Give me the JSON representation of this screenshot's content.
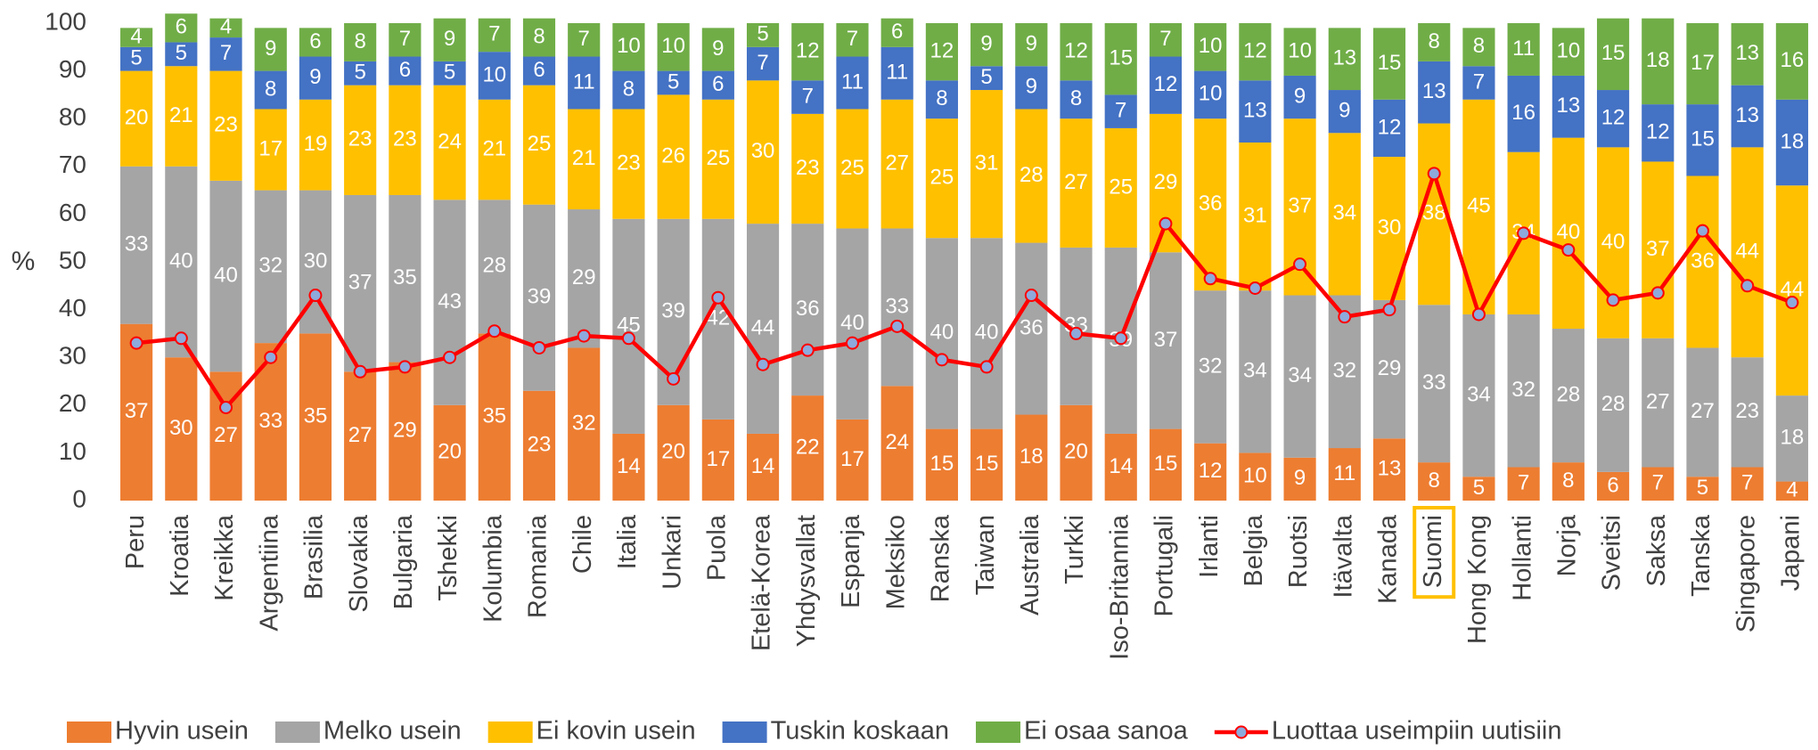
{
  "chart_data": {
    "type": "stacked_bar_line",
    "y_label": "%",
    "categories": [
      "Peru",
      "Kroatia",
      "Kreikka",
      "Argentiina",
      "Brasilia",
      "Slovakia",
      "Bulgaria",
      "Tshekki",
      "Kolumbia",
      "Romania",
      "Chile",
      "Italia",
      "Unkari",
      "Puola",
      "Etelä-Korea",
      "Yhdysvallat",
      "Espanja",
      "Meksiko",
      "Ranska",
      "Taiwan",
      "Australia",
      "Turkki",
      "Iso-Britannia",
      "Portugali",
      "Irlanti",
      "Belgia",
      "Ruotsi",
      "Itävalta",
      "Kanada",
      "Suomi",
      "Hong Kong",
      "Hollanti",
      "Norja",
      "Sveitsi",
      "Saksa",
      "Tanska",
      "Singapore",
      "Japani"
    ],
    "highlighted_category_index": 29,
    "highlight_color": "#ffc000",
    "series": [
      {
        "name": "Hyvin usein",
        "color": "#ed7d31",
        "values": [
          37,
          30,
          27,
          33,
          35,
          27,
          29,
          20,
          35,
          23,
          32,
          14,
          20,
          17,
          14,
          22,
          17,
          24,
          15,
          15,
          18,
          20,
          14,
          15,
          12,
          10,
          9,
          11,
          13,
          8,
          5,
          7,
          8,
          6,
          7,
          5,
          7,
          4
        ]
      },
      {
        "name": "Melko usein",
        "color": "#a5a5a5",
        "values": [
          33,
          40,
          40,
          32,
          30,
          37,
          35,
          43,
          28,
          39,
          29,
          45,
          39,
          42,
          44,
          36,
          40,
          33,
          40,
          40,
          36,
          33,
          39,
          37,
          32,
          34,
          34,
          32,
          29,
          33,
          34,
          32,
          28,
          28,
          27,
          27,
          23,
          18
        ]
      },
      {
        "name": "Ei kovin usein",
        "color": "#ffc000",
        "values": [
          20,
          21,
          23,
          17,
          19,
          23,
          23,
          24,
          21,
          25,
          21,
          23,
          26,
          25,
          30,
          23,
          25,
          27,
          25,
          31,
          28,
          27,
          25,
          29,
          36,
          31,
          37,
          34,
          30,
          38,
          45,
          34,
          40,
          40,
          37,
          36,
          44,
          44
        ]
      },
      {
        "name": "Tuskin koskaan",
        "color": "#4472c4",
        "values": [
          5,
          5,
          7,
          8,
          9,
          5,
          6,
          5,
          10,
          6,
          11,
          8,
          5,
          6,
          7,
          7,
          11,
          11,
          8,
          5,
          9,
          8,
          7,
          12,
          10,
          13,
          9,
          9,
          12,
          13,
          7,
          16,
          13,
          12,
          12,
          15,
          13,
          18
        ]
      },
      {
        "name": "Ei osaa sanoa",
        "color": "#70ad47",
        "values": [
          4,
          6,
          4,
          9,
          6,
          8,
          7,
          9,
          7,
          8,
          7,
          10,
          10,
          9,
          5,
          12,
          7,
          6,
          12,
          9,
          9,
          12,
          15,
          7,
          10,
          12,
          10,
          13,
          15,
          8,
          8,
          11,
          10,
          15,
          18,
          17,
          13,
          16
        ]
      },
      {
        "name": "Luottaa useimpiin uutisiin",
        "color": "#ff0000",
        "marker_color": "#8ea9db",
        "type": "line",
        "values": [
          33,
          34,
          19.5,
          30,
          43,
          27,
          28,
          30,
          35.5,
          32,
          34.5,
          34,
          25.5,
          42.5,
          28.5,
          31.5,
          33,
          36.5,
          29.5,
          28,
          43,
          35,
          34,
          58,
          46.5,
          44.5,
          49.5,
          38.5,
          40,
          68.5,
          39,
          56,
          52.5,
          42,
          43.5,
          56.5,
          45,
          41.5
        ]
      }
    ],
    "ylim": [
      0,
      100
    ],
    "yticks": [
      0,
      10,
      20,
      30,
      40,
      50,
      60,
      70,
      80,
      90,
      100
    ],
    "grid": false,
    "legend": "bottom"
  }
}
